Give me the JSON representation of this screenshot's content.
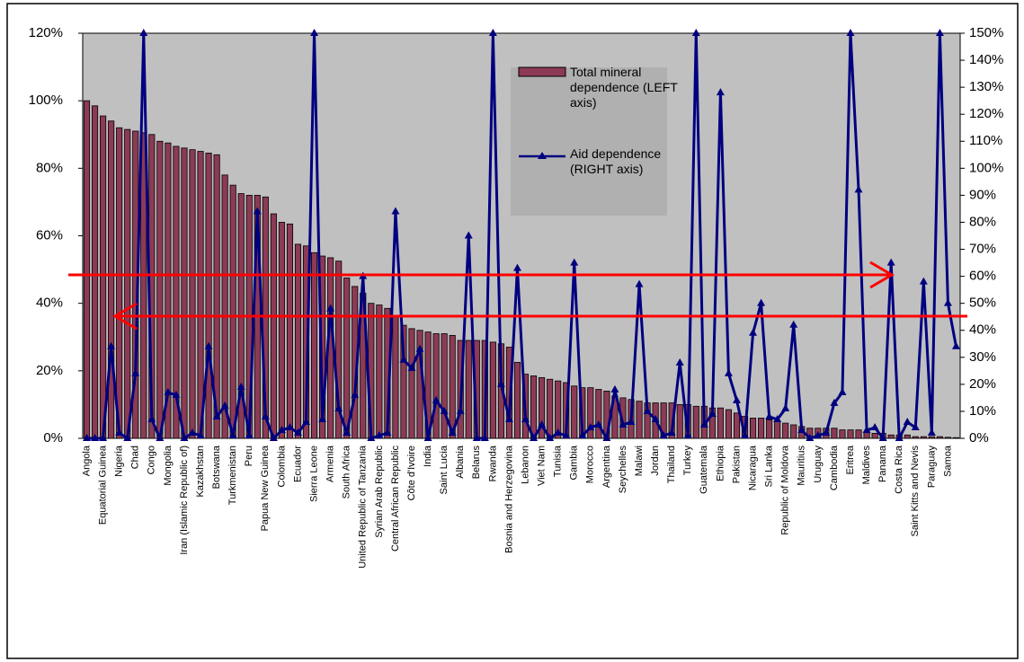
{
  "chart_data": {
    "type": "bar-line",
    "categories": [
      "Angola",
      null,
      "Equatorial Guinea",
      null,
      "Nigeria",
      null,
      "Chad",
      null,
      "Congo",
      null,
      "Mongolia",
      null,
      "Iran (Islamic Republic of)",
      null,
      "Kazakhstan",
      null,
      "Botswana",
      null,
      "Turkmenistan",
      null,
      "Peru",
      null,
      "Papua New Guinea",
      null,
      "Colombia",
      null,
      "Ecuador",
      null,
      "Sierra Leone",
      null,
      "Armenia",
      null,
      "South Africa",
      null,
      "United Republic of Tanzania",
      null,
      "Syrian Arab Republic",
      null,
      "Central African Republic",
      null,
      "Côte d'Ivoire",
      null,
      "India",
      null,
      "Saint Lucia",
      null,
      "Albania",
      null,
      "Belarus",
      null,
      "Rwanda",
      null,
      "Bosnia and Herzegovina",
      null,
      "Lebanon",
      null,
      "Viet Nam",
      null,
      "Tunisia",
      null,
      "Gambia",
      null,
      "Morocco",
      null,
      "Argentina",
      null,
      "Seychelles",
      null,
      "Malawi",
      null,
      "Jordan",
      null,
      "Thailand",
      null,
      "Turkey",
      null,
      "Guatemala",
      null,
      "Ethiopia",
      null,
      "Pakistan",
      null,
      "Nicaragua",
      null,
      "Sri Lanka",
      null,
      "Republic of Moldova",
      null,
      "Mauritius",
      null,
      "Uruguay",
      null,
      "Cambodia",
      null,
      "Eritrea",
      null,
      "Maldives",
      null,
      "Panama",
      null,
      "Costa Rica",
      null,
      "Saint Kitts and Nevis",
      null,
      "Paraguay",
      null,
      "Samoa",
      null
    ],
    "series": [
      {
        "name": "Total mineral dependence (LEFT axis)",
        "color": "#8c3a55",
        "kind": "bar",
        "axis": "y",
        "values": [
          100,
          98.5,
          95.5,
          94,
          92,
          91.5,
          91,
          90.5,
          90,
          88,
          87.5,
          86.5,
          86,
          85.5,
          85,
          84.5,
          84,
          78,
          75,
          72.5,
          72,
          72,
          71.5,
          66.5,
          64,
          63.5,
          57.5,
          57,
          55,
          54,
          53.5,
          52.5,
          47.5,
          45,
          43,
          40,
          39.5,
          38.5,
          36,
          33.5,
          32.5,
          32,
          31.5,
          31,
          31,
          30.5,
          29,
          29,
          29,
          29,
          28.5,
          28,
          27,
          22.5,
          19,
          18.5,
          18,
          17.5,
          17,
          16.5,
          15.5,
          15,
          15,
          14.5,
          14,
          12.5,
          12,
          11.5,
          11,
          10.5,
          10.5,
          10.5,
          10.5,
          10,
          10,
          9.5,
          9.5,
          9,
          9,
          8.5,
          7.5,
          6.5,
          6,
          6,
          5.5,
          5,
          4.5,
          4,
          3.5,
          3,
          3,
          3,
          3,
          2.5,
          2.5,
          2.5,
          2,
          1.5,
          1.5,
          1,
          1,
          1,
          0.5,
          0.5,
          0.5,
          0.5,
          0.3,
          0.2
        ]
      },
      {
        "name": "Aid dependence (RIGHT axis)",
        "color": "#000080",
        "kind": "line",
        "axis": "y2",
        "values": [
          0,
          0,
          0,
          34,
          2,
          0,
          24,
          150,
          7,
          0,
          17,
          16,
          0,
          2,
          1,
          34,
          8,
          12,
          1,
          19,
          1,
          84,
          8,
          0,
          3,
          4,
          2,
          6,
          150,
          7,
          48,
          11,
          2,
          16,
          60,
          0,
          1,
          2,
          84,
          29,
          26,
          33,
          0,
          14,
          10,
          2,
          10,
          75,
          0,
          0,
          150,
          20,
          7,
          63,
          7,
          0,
          5,
          0,
          2,
          1,
          65,
          1,
          4,
          5,
          0,
          18,
          5,
          6,
          57,
          10,
          7,
          1,
          2,
          28,
          1,
          150,
          5,
          9,
          128,
          24,
          14,
          1,
          39,
          50,
          8,
          7,
          11,
          42,
          3,
          0,
          1,
          2,
          13,
          17,
          150,
          92,
          3,
          4,
          0,
          65,
          0,
          6,
          4,
          58,
          2,
          150,
          50,
          34
        ]
      }
    ],
    "ylim": [
      0,
      120
    ],
    "yticks": [
      {
        "value": 0,
        "label": "0%"
      },
      {
        "value": 20,
        "label": "20%"
      },
      {
        "value": 40,
        "label": "40%"
      },
      {
        "value": 60,
        "label": "60%"
      },
      {
        "value": 80,
        "label": "80%"
      },
      {
        "value": 100,
        "label": "100%"
      },
      {
        "value": 120,
        "label": "120%"
      }
    ],
    "y2lim": [
      0,
      150
    ],
    "y2ticks": [
      {
        "value": 0,
        "label": "0%"
      },
      {
        "value": 10,
        "label": "10%"
      },
      {
        "value": 20,
        "label": "20%"
      },
      {
        "value": 30,
        "label": "30%"
      },
      {
        "value": 40,
        "label": "40%"
      },
      {
        "value": 50,
        "label": "50%"
      },
      {
        "value": 60,
        "label": "60%"
      },
      {
        "value": 70,
        "label": "70%"
      },
      {
        "value": 80,
        "label": "80%"
      },
      {
        "value": 90,
        "label": "90%"
      },
      {
        "value": 100,
        "label": "100%"
      },
      {
        "value": 110,
        "label": "110%"
      },
      {
        "value": 120,
        "label": "120%"
      },
      {
        "value": 130,
        "label": "130%"
      },
      {
        "value": 140,
        "label": "140%"
      },
      {
        "value": 150,
        "label": "150%"
      }
    ],
    "legend": "top-center"
  }
}
